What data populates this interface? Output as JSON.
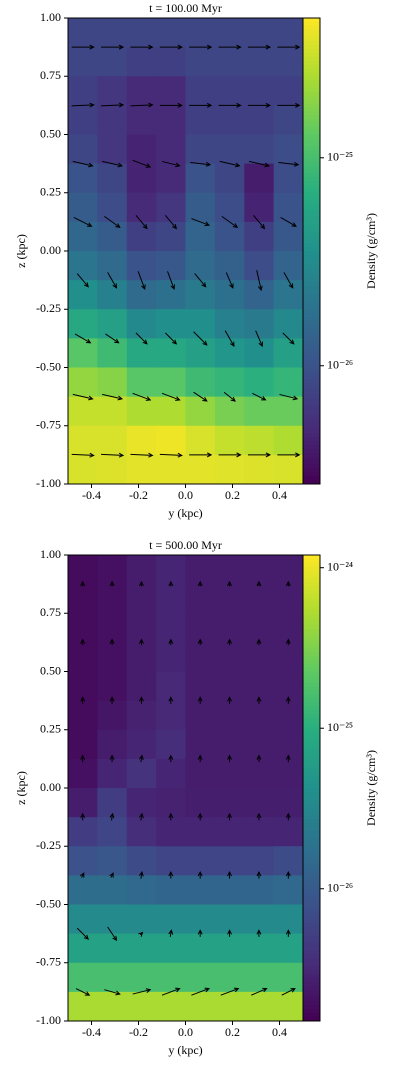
{
  "chart_data": [
    {
      "type": "heatmap",
      "title": "t = 100.00 Myr",
      "x_label": "y  (kpc)",
      "y_label": "z  (kpc)",
      "colorbar_label": "Density (g/cm³)",
      "cmap": "viridis",
      "color_scale": "log",
      "xlim": [
        -0.5,
        0.5
      ],
      "xticks": [
        -0.4,
        -0.2,
        {
          "value": 0,
          "label": "0.0"
        },
        0.2,
        0.4
      ],
      "ylim": [
        -1,
        1
      ],
      "yticks": [
        {
          "value": -1,
          "label": "-1.00"
        },
        -0.75,
        {
          "value": -0.5,
          "label": "-0.50"
        },
        -0.25,
        {
          "value": 0,
          "label": "0.00"
        },
        0.25,
        {
          "value": 0.5,
          "label": "0.50"
        },
        0.75,
        {
          "value": 1,
          "label": "1.00"
        }
      ],
      "clim": [
        2.7e-27,
        4.7e-25
      ],
      "cticks": [
        {
          "value": 1e-26,
          "label": "10⁻²⁶"
        },
        {
          "value": 1e-25,
          "label": "10⁻²⁵"
        }
      ],
      "values": [
        [
          8e-27,
          8e-27,
          8e-27,
          8e-27,
          8e-27,
          8e-27,
          8e-27,
          8e-27
        ],
        [
          8e-27,
          8e-27,
          7e-27,
          7e-27,
          8e-27,
          8e-27,
          8e-27,
          8e-27
        ],
        [
          7e-27,
          6e-27,
          5e-27,
          5e-27,
          7e-27,
          7e-27,
          7e-27,
          7e-27
        ],
        [
          7e-27,
          6e-27,
          5e-27,
          5e-27,
          7e-27,
          7e-27,
          7e-27,
          8e-27
        ],
        [
          8e-27,
          6e-27,
          4.5e-27,
          5e-27,
          8e-27,
          8e-27,
          8e-27,
          9e-27
        ],
        [
          1e-26,
          8e-27,
          4.5e-27,
          5e-27,
          1e-26,
          8e-27,
          4e-27,
          9e-27
        ],
        [
          1.2e-26,
          9e-27,
          5e-27,
          6e-27,
          1.2e-26,
          9e-27,
          4.5e-27,
          1e-26
        ],
        [
          1.5e-26,
          1.2e-26,
          7e-27,
          8e-27,
          1.4e-26,
          1e-26,
          7e-27,
          1.1e-26
        ],
        [
          2e-26,
          1.6e-26,
          1e-26,
          1.1e-26,
          1.6e-26,
          1.3e-26,
          9e-27,
          1.4e-26
        ],
        [
          3.5e-26,
          2.5e-26,
          1.6e-26,
          1.8e-26,
          2.2e-26,
          1.8e-26,
          1.4e-26,
          2e-26
        ],
        [
          6e-26,
          5e-26,
          3e-26,
          3.5e-26,
          3.5e-26,
          2.5e-26,
          2.2e-26,
          3e-26
        ],
        [
          1.2e-25,
          9e-26,
          6e-26,
          6e-26,
          5e-26,
          4e-26,
          3.5e-26,
          5e-26
        ],
        [
          2e-25,
          1.8e-25,
          1.2e-25,
          1.2e-25,
          9e-26,
          8e-26,
          7e-26,
          8e-26
        ],
        [
          3e-25,
          3e-25,
          2.5e-25,
          2.5e-25,
          2e-25,
          1.6e-25,
          1.4e-25,
          1.4e-25
        ],
        [
          3.5e-25,
          3.5e-25,
          4e-25,
          4.2e-25,
          3.5e-25,
          3e-25,
          2.8e-25,
          2.5e-25
        ],
        [
          3.5e-25,
          3.6e-25,
          3.8e-25,
          3.8e-25,
          3.8e-25,
          3.7e-25,
          3.6e-25,
          3.5e-25
        ]
      ],
      "quiver": {
        "u": [
          [
            1,
            1,
            1,
            1,
            1,
            1,
            1,
            1
          ],
          [
            1,
            1,
            1,
            1,
            1,
            1,
            1,
            1
          ],
          [
            0.9,
            0.9,
            0.8,
            0.8,
            0.9,
            0.9,
            0.9,
            0.9
          ],
          [
            0.8,
            0.7,
            0.5,
            0.5,
            0.8,
            0.7,
            0.5,
            0.7
          ],
          [
            0.5,
            0.4,
            0.3,
            0.3,
            0.5,
            0.3,
            0.2,
            0.4
          ],
          [
            0.7,
            0.6,
            0.5,
            0.5,
            0.6,
            0.4,
            0.3,
            0.5
          ],
          [
            0.9,
            0.9,
            0.8,
            0.8,
            0.6,
            0.5,
            0.6,
            0.8
          ],
          [
            1,
            1,
            1,
            1,
            1,
            1,
            1,
            1
          ]
        ],
        "w": [
          [
            0,
            0,
            0,
            0,
            0,
            0,
            0,
            0
          ],
          [
            0.05,
            0.05,
            0.05,
            0,
            0,
            0,
            0,
            0
          ],
          [
            -0.2,
            -0.2,
            -0.3,
            -0.2,
            -0.1,
            -0.2,
            -0.2,
            -0.1
          ],
          [
            -0.4,
            -0.5,
            -0.6,
            -0.6,
            -0.3,
            -0.5,
            -0.6,
            -0.4
          ],
          [
            -0.6,
            -0.7,
            -0.8,
            -0.8,
            -0.6,
            -0.7,
            -0.9,
            -0.7
          ],
          [
            -0.4,
            -0.4,
            -0.5,
            -0.5,
            -0.6,
            -0.7,
            -0.7,
            -0.5
          ],
          [
            -0.2,
            -0.2,
            -0.3,
            -0.3,
            -0.4,
            -0.4,
            -0.3,
            -0.2
          ],
          [
            -0.05,
            -0.05,
            -0.05,
            -0.05,
            0,
            0,
            0,
            0
          ]
        ]
      }
    },
    {
      "type": "heatmap",
      "title": "t = 500.00 Myr",
      "x_label": "y  (kpc)",
      "y_label": "z  (kpc)",
      "colorbar_label": "Density (g/cm³)",
      "cmap": "viridis",
      "color_scale": "log",
      "xlim": [
        -0.5,
        0.5
      ],
      "xticks": [
        -0.4,
        -0.2,
        {
          "value": 0,
          "label": "0.0"
        },
        0.2,
        0.4
      ],
      "ylim": [
        -1,
        1
      ],
      "yticks": [
        {
          "value": -1,
          "label": "-1.00"
        },
        -0.75,
        {
          "value": -0.5,
          "label": "-0.50"
        },
        -0.25,
        {
          "value": 0,
          "label": "0.00"
        },
        0.25,
        {
          "value": 0.5,
          "label": "0.50"
        },
        0.75,
        {
          "value": 1,
          "label": "1.00"
        }
      ],
      "clim": [
        1.5e-27,
        1.2e-24
      ],
      "cticks": [
        {
          "value": 1e-26,
          "label": "10⁻²⁶"
        },
        {
          "value": 1e-25,
          "label": "10⁻²⁵"
        },
        {
          "value": 1e-24,
          "label": "10⁻²⁴"
        }
      ],
      "values": [
        [
          1.8e-27,
          2e-27,
          2.5e-27,
          3e-27,
          2.5e-27,
          2.5e-27,
          2.5e-27,
          2.5e-27
        ],
        [
          1.8e-27,
          2e-27,
          2.5e-27,
          3e-27,
          2.5e-27,
          2.5e-27,
          2.5e-27,
          2.5e-27
        ],
        [
          1.8e-27,
          2e-27,
          2.5e-27,
          3e-27,
          2.5e-27,
          2.5e-27,
          2.5e-27,
          2.5e-27
        ],
        [
          1.8e-27,
          2e-27,
          2.5e-27,
          3e-27,
          2.5e-27,
          2.5e-27,
          2.5e-27,
          2.5e-27
        ],
        [
          1.8e-27,
          2e-27,
          2.5e-27,
          3.2e-27,
          2.5e-27,
          2.5e-27,
          2.5e-27,
          2.5e-27
        ],
        [
          1.8e-27,
          2.2e-27,
          2.8e-27,
          3.2e-27,
          2.5e-27,
          2.5e-27,
          2.5e-27,
          2.5e-27
        ],
        [
          1.8e-27,
          2.5e-27,
          3e-27,
          3.5e-27,
          2.5e-27,
          2.5e-27,
          2.5e-27,
          2.5e-27
        ],
        [
          2e-27,
          3e-27,
          4e-27,
          3e-27,
          2.5e-27,
          2.5e-27,
          2.5e-27,
          2.5e-27
        ],
        [
          2.5e-27,
          5e-27,
          3e-27,
          2.8e-27,
          2.6e-27,
          2.6e-27,
          2.6e-27,
          2.6e-27
        ],
        [
          5e-27,
          6e-27,
          3.5e-27,
          3e-27,
          3e-27,
          3e-27,
          3e-27,
          3e-27
        ],
        [
          8e-27,
          9e-27,
          7e-27,
          6e-27,
          6e-27,
          6e-27,
          6e-27,
          7e-27
        ],
        [
          1.6e-26,
          1.6e-26,
          1.4e-26,
          1.3e-26,
          1.3e-26,
          1.3e-26,
          1.3e-26,
          1.4e-26
        ],
        [
          3.5e-26,
          3.5e-26,
          3.5e-26,
          3.5e-26,
          3.5e-26,
          3.5e-26,
          3.5e-26,
          3.5e-26
        ],
        [
          7e-26,
          7e-26,
          7e-26,
          7e-26,
          7e-26,
          7e-26,
          7e-26,
          7e-26
        ],
        [
          1.6e-25,
          1.6e-25,
          1.6e-25,
          1.6e-25,
          1.6e-25,
          1.6e-25,
          1.6e-25,
          1.6e-25
        ],
        [
          5e-25,
          5e-25,
          5e-25,
          5e-25,
          5e-25,
          5e-25,
          5e-25,
          5e-25
        ]
      ],
      "quiver": {
        "u": [
          [
            0,
            0,
            0,
            0,
            0,
            0,
            0,
            0
          ],
          [
            0,
            0,
            0,
            0,
            0,
            0,
            0,
            0
          ],
          [
            0,
            0,
            0,
            0,
            0,
            0,
            0,
            0
          ],
          [
            0,
            0,
            0.05,
            0,
            0,
            0,
            0,
            0
          ],
          [
            0,
            0.05,
            0.05,
            0,
            0,
            0,
            0,
            0
          ],
          [
            0.1,
            0.1,
            0.05,
            0,
            0,
            0,
            0,
            0
          ],
          [
            0.5,
            0.4,
            0.1,
            0.05,
            0,
            0,
            0,
            0
          ],
          [
            0.6,
            0.7,
            0.8,
            0.8,
            0.8,
            0.8,
            0.7,
            0.6
          ]
        ],
        "w": [
          [
            0.2,
            0.2,
            0.2,
            0.2,
            0.2,
            0.2,
            0.2,
            0.2
          ],
          [
            0.25,
            0.25,
            0.25,
            0.25,
            0.25,
            0.25,
            0.25,
            0.25
          ],
          [
            0.3,
            0.3,
            0.3,
            0.3,
            0.3,
            0.3,
            0.3,
            0.3
          ],
          [
            0.3,
            0.3,
            0.3,
            0.3,
            0.3,
            0.3,
            0.3,
            0.3
          ],
          [
            0.3,
            0.3,
            0.3,
            0.3,
            0.3,
            0.3,
            0.3,
            0.3
          ],
          [
            0.2,
            0.2,
            0.3,
            0.3,
            0.3,
            0.3,
            0.3,
            0.3
          ],
          [
            -0.5,
            -0.6,
            0.1,
            0.3,
            0.3,
            0.3,
            0.3,
            0.3
          ],
          [
            -0.3,
            -0.2,
            0.2,
            0.3,
            0.3,
            0.3,
            0.3,
            0.3
          ]
        ]
      }
    }
  ]
}
